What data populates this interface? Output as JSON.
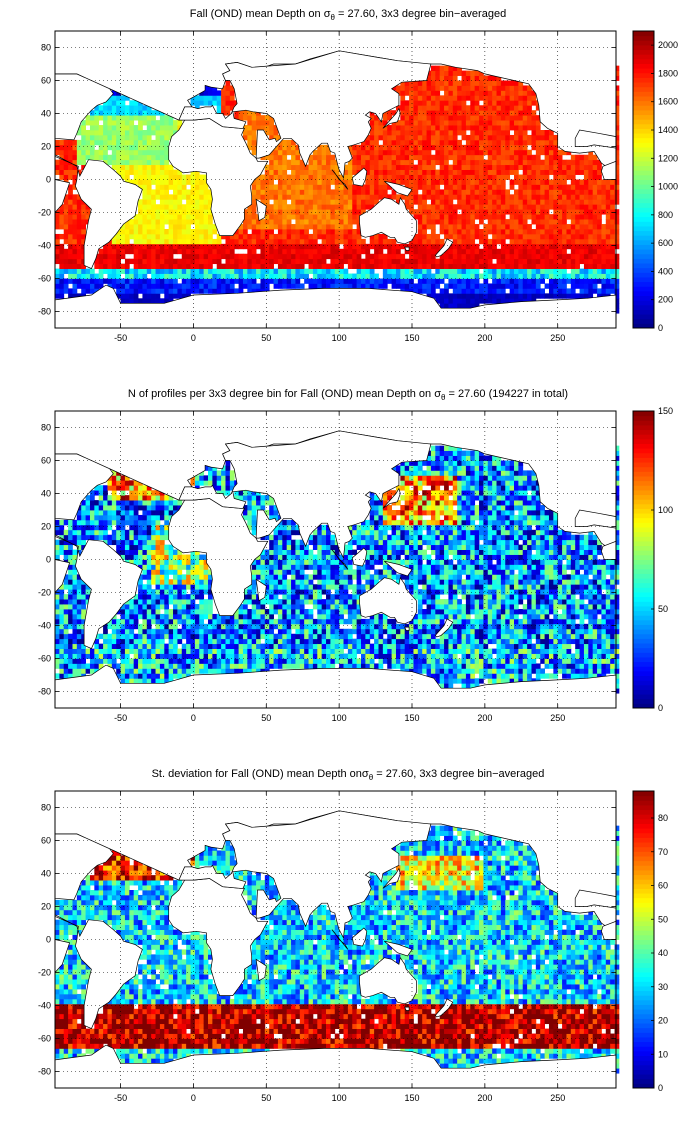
{
  "chart_data": [
    {
      "type": "heatmap",
      "title_prefix": "Fall (OND) mean Depth on ",
      "title_suffix": " = 27.60, 3x3 degree bin−averaged",
      "x_ticks": [
        "-50",
        "0",
        "50",
        "100",
        "150",
        "200",
        "250"
      ],
      "x_tick_values": [
        -50,
        0,
        50,
        100,
        150,
        200,
        250
      ],
      "y_ticks": [
        "80",
        "60",
        "40",
        "20",
        "0",
        "-20",
        "-40",
        "-60",
        "-80"
      ],
      "y_tick_values": [
        80,
        60,
        40,
        20,
        0,
        -20,
        -40,
        -60,
        -80
      ],
      "xlim": [
        -95,
        290
      ],
      "ylim": [
        -90,
        90
      ],
      "colorbar_ticks": [
        "2000",
        "1800",
        "1600",
        "1400",
        "1200",
        "1000",
        "800",
        "600",
        "400",
        "200",
        "0"
      ],
      "colorbar_values": [
        2000,
        1800,
        1600,
        1400,
        1200,
        1000,
        800,
        600,
        400,
        200,
        0
      ],
      "colorbar_range": [
        0,
        2100
      ],
      "grid": true,
      "colormap": "jet"
    },
    {
      "type": "heatmap",
      "title_prefix": "N of profiles per 3x3 degree bin for Fall (OND) mean Depth on ",
      "title_suffix": " = 27.60 (194227 in total)",
      "x_ticks": [
        "-50",
        "0",
        "50",
        "100",
        "150",
        "200",
        "250"
      ],
      "x_tick_values": [
        -50,
        0,
        50,
        100,
        150,
        200,
        250
      ],
      "y_ticks": [
        "80",
        "60",
        "40",
        "20",
        "0",
        "-20",
        "-40",
        "-60",
        "-80"
      ],
      "y_tick_values": [
        80,
        60,
        40,
        20,
        0,
        -20,
        -40,
        -60,
        -80
      ],
      "xlim": [
        -95,
        290
      ],
      "ylim": [
        -90,
        90
      ],
      "colorbar_ticks": [
        "150",
        "100",
        "50",
        "0"
      ],
      "colorbar_values": [
        150,
        100,
        50,
        0
      ],
      "colorbar_range": [
        0,
        150
      ],
      "grid": true,
      "colormap": "jet"
    },
    {
      "type": "heatmap",
      "title_prefix": "St. deviation for Fall (OND) mean Depth on",
      "title_suffix": " = 27.60, 3x3 degree bin−averaged",
      "x_ticks": [
        "-50",
        "0",
        "50",
        "100",
        "150",
        "200",
        "250"
      ],
      "x_tick_values": [
        -50,
        0,
        50,
        100,
        150,
        200,
        250
      ],
      "y_ticks": [
        "80",
        "60",
        "40",
        "20",
        "0",
        "-20",
        "-40",
        "-60",
        "-80"
      ],
      "y_tick_values": [
        80,
        60,
        40,
        20,
        0,
        -20,
        -40,
        -60,
        -80
      ],
      "xlim": [
        -95,
        290
      ],
      "ylim": [
        -90,
        90
      ],
      "colorbar_ticks": [
        "80",
        "70",
        "60",
        "50",
        "40",
        "30",
        "20",
        "10",
        "0"
      ],
      "colorbar_values": [
        80,
        70,
        60,
        50,
        40,
        30,
        20,
        10,
        0
      ],
      "colorbar_range": [
        0,
        88
      ],
      "grid": true,
      "colormap": "jet"
    }
  ]
}
